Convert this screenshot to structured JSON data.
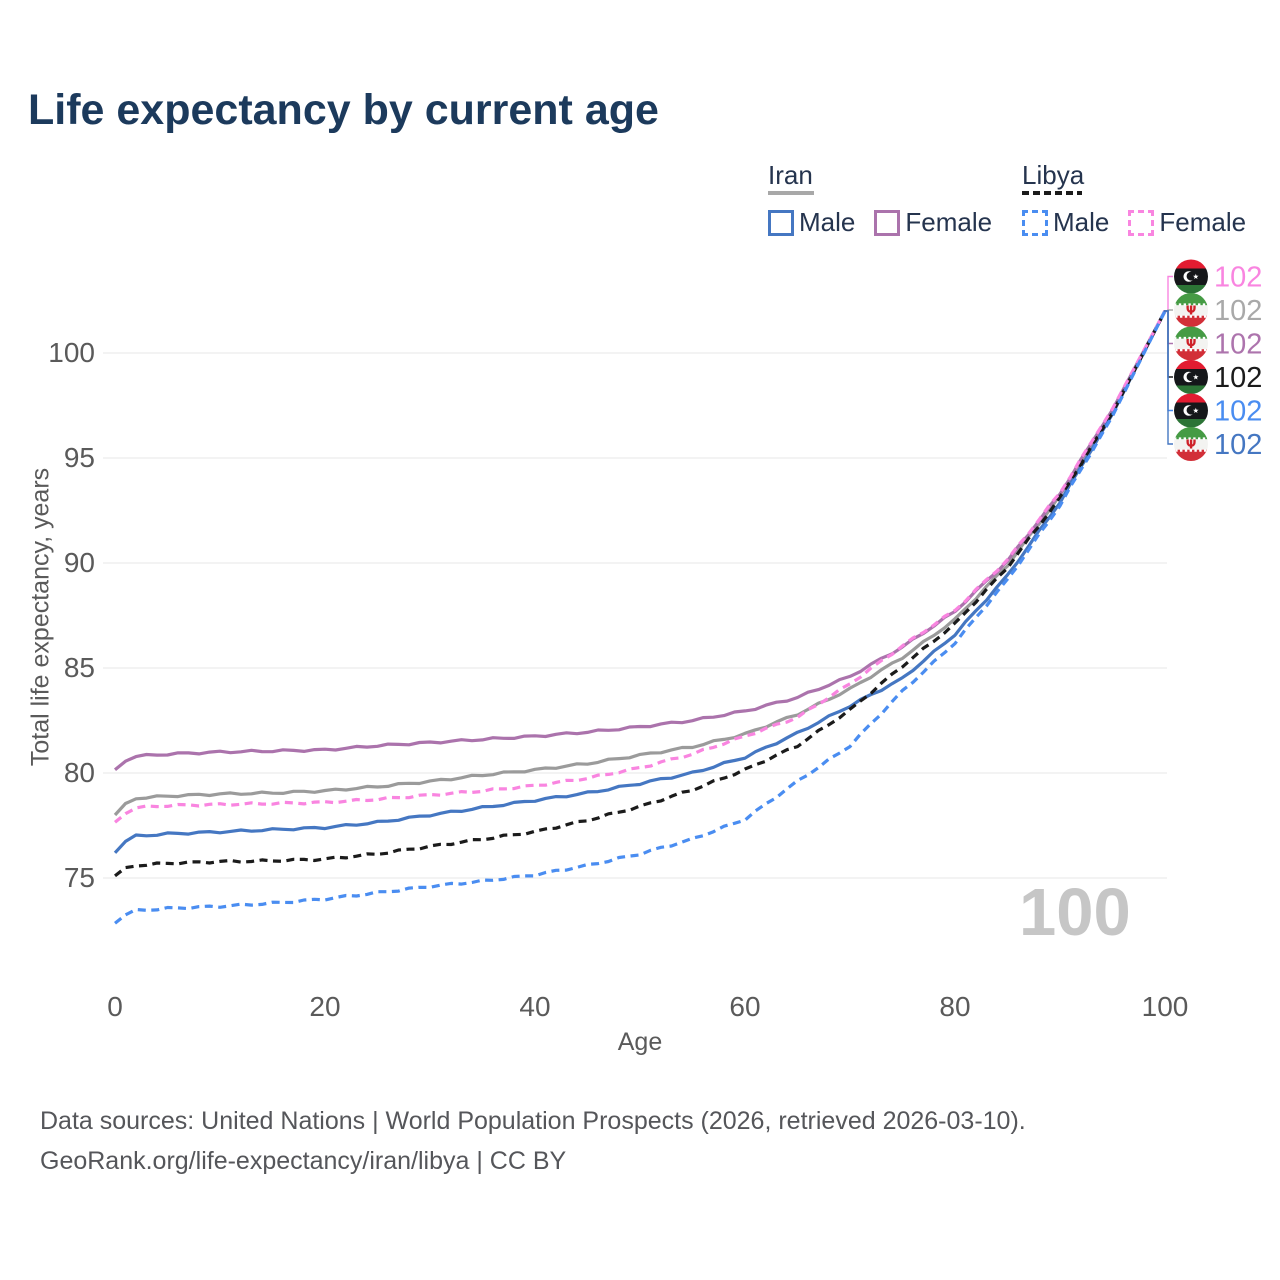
{
  "title": "Life expectancy by current age",
  "legend": {
    "groups": [
      {
        "country": "Iran",
        "line_style": "solid",
        "line_color": "#a8a8a8",
        "items": [
          {
            "label": "Male",
            "swatch_color": "#4577c2",
            "swatch_style": "solid"
          },
          {
            "label": "Female",
            "swatch_color": "#ab73ac",
            "swatch_style": "solid"
          }
        ]
      },
      {
        "country": "Libya",
        "line_style": "dashed",
        "line_color": "#1b1b1b",
        "items": [
          {
            "label": "Male",
            "swatch_color": "#4a8df1",
            "swatch_style": "dashed"
          },
          {
            "label": "Female",
            "swatch_color": "#f985e0",
            "swatch_style": "dashed"
          }
        ]
      }
    ]
  },
  "chart_data": {
    "type": "line",
    "title": "Life expectancy by current age",
    "xlabel": "Age",
    "ylabel": "Total life expectancy, years",
    "xlim": [
      0,
      100
    ],
    "ylim": [
      72,
      103
    ],
    "x_ticks": [
      0,
      20,
      40,
      60,
      80,
      100
    ],
    "y_ticks": [
      75,
      80,
      85,
      90,
      95,
      100
    ],
    "grid": "horizontal-only",
    "grid_color": "#ececec",
    "hover_age": "100",
    "series": [
      {
        "name": "Iran",
        "country": "iran",
        "sex": "total",
        "color": "#9b9b9b",
        "dashed": false,
        "points": [
          [
            0,
            78.0
          ],
          [
            1,
            78.5
          ],
          [
            2,
            78.8
          ],
          [
            5,
            78.9
          ],
          [
            10,
            79.0
          ],
          [
            15,
            79.05
          ],
          [
            20,
            79.15
          ],
          [
            25,
            79.35
          ],
          [
            30,
            79.6
          ],
          [
            35,
            79.9
          ],
          [
            40,
            80.15
          ],
          [
            45,
            80.45
          ],
          [
            50,
            80.85
          ],
          [
            55,
            81.25
          ],
          [
            60,
            81.85
          ],
          [
            65,
            82.8
          ],
          [
            70,
            84.0
          ],
          [
            75,
            85.5
          ],
          [
            80,
            87.3
          ],
          [
            85,
            89.9
          ],
          [
            90,
            93.2
          ],
          [
            95,
            97.2
          ],
          [
            100,
            102
          ]
        ]
      },
      {
        "name": "Iran Female",
        "country": "iran",
        "sex": "female",
        "color": "#ab73ac",
        "dashed": false,
        "points": [
          [
            0,
            80.15
          ],
          [
            1,
            80.6
          ],
          [
            2,
            80.8
          ],
          [
            5,
            80.9
          ],
          [
            10,
            81.0
          ],
          [
            15,
            81.05
          ],
          [
            20,
            81.1
          ],
          [
            25,
            81.3
          ],
          [
            30,
            81.45
          ],
          [
            35,
            81.6
          ],
          [
            40,
            81.75
          ],
          [
            45,
            81.95
          ],
          [
            50,
            82.2
          ],
          [
            55,
            82.5
          ],
          [
            60,
            82.95
          ],
          [
            65,
            83.6
          ],
          [
            70,
            84.6
          ],
          [
            75,
            86.0
          ],
          [
            80,
            87.7
          ],
          [
            85,
            90.1
          ],
          [
            90,
            93.3
          ],
          [
            95,
            97.3
          ],
          [
            100,
            102
          ]
        ]
      },
      {
        "name": "Iran Male",
        "country": "iran",
        "sex": "male",
        "color": "#4577c2",
        "dashed": false,
        "points": [
          [
            0,
            76.2
          ],
          [
            1,
            76.75
          ],
          [
            2,
            77.0
          ],
          [
            5,
            77.1
          ],
          [
            10,
            77.2
          ],
          [
            15,
            77.3
          ],
          [
            20,
            77.4
          ],
          [
            25,
            77.65
          ],
          [
            30,
            78.0
          ],
          [
            35,
            78.35
          ],
          [
            40,
            78.7
          ],
          [
            45,
            79.05
          ],
          [
            50,
            79.5
          ],
          [
            55,
            80.0
          ],
          [
            60,
            80.75
          ],
          [
            65,
            81.9
          ],
          [
            70,
            83.2
          ],
          [
            75,
            84.5
          ],
          [
            80,
            86.6
          ],
          [
            85,
            89.4
          ],
          [
            90,
            92.9
          ],
          [
            95,
            97.1
          ],
          [
            100,
            102
          ]
        ]
      },
      {
        "name": "Libya",
        "country": "libya",
        "sex": "total",
        "color": "#1b1b1b",
        "dashed": true,
        "points": [
          [
            0,
            75.1
          ],
          [
            1,
            75.45
          ],
          [
            2,
            75.6
          ],
          [
            5,
            75.7
          ],
          [
            10,
            75.78
          ],
          [
            15,
            75.82
          ],
          [
            20,
            75.9
          ],
          [
            25,
            76.15
          ],
          [
            30,
            76.5
          ],
          [
            35,
            76.85
          ],
          [
            40,
            77.2
          ],
          [
            45,
            77.75
          ],
          [
            50,
            78.4
          ],
          [
            55,
            79.2
          ],
          [
            60,
            80.15
          ],
          [
            65,
            81.3
          ],
          [
            70,
            83.0
          ],
          [
            75,
            85.1
          ],
          [
            80,
            87.1
          ],
          [
            85,
            89.8
          ],
          [
            90,
            93.1
          ],
          [
            95,
            97.15
          ],
          [
            100,
            102
          ]
        ]
      },
      {
        "name": "Libya Female",
        "country": "libya",
        "sex": "female",
        "color": "#f985e0",
        "dashed": true,
        "points": [
          [
            0,
            77.65
          ],
          [
            1,
            78.1
          ],
          [
            2,
            78.35
          ],
          [
            5,
            78.45
          ],
          [
            10,
            78.5
          ],
          [
            15,
            78.55
          ],
          [
            20,
            78.6
          ],
          [
            25,
            78.75
          ],
          [
            30,
            78.95
          ],
          [
            35,
            79.15
          ],
          [
            40,
            79.4
          ],
          [
            45,
            79.75
          ],
          [
            50,
            80.25
          ],
          [
            55,
            80.9
          ],
          [
            60,
            81.75
          ],
          [
            65,
            82.65
          ],
          [
            70,
            84.25
          ],
          [
            75,
            86.05
          ],
          [
            80,
            87.75
          ],
          [
            85,
            90.15
          ],
          [
            90,
            93.35
          ],
          [
            95,
            97.35
          ],
          [
            100,
            102
          ]
        ]
      },
      {
        "name": "Libya Male",
        "country": "libya",
        "sex": "male",
        "color": "#4a8df1",
        "dashed": true,
        "points": [
          [
            0,
            72.85
          ],
          [
            1,
            73.25
          ],
          [
            2,
            73.45
          ],
          [
            5,
            73.55
          ],
          [
            10,
            73.65
          ],
          [
            15,
            73.8
          ],
          [
            20,
            74.0
          ],
          [
            25,
            74.3
          ],
          [
            30,
            74.6
          ],
          [
            35,
            74.85
          ],
          [
            40,
            75.15
          ],
          [
            45,
            75.6
          ],
          [
            50,
            76.15
          ],
          [
            55,
            76.85
          ],
          [
            60,
            77.8
          ],
          [
            65,
            79.6
          ],
          [
            70,
            81.3
          ],
          [
            75,
            83.9
          ],
          [
            80,
            86.2
          ],
          [
            85,
            89.2
          ],
          [
            90,
            92.75
          ],
          [
            95,
            97.0
          ],
          [
            100,
            102
          ]
        ]
      }
    ],
    "end_labels": [
      {
        "series": "Libya Female",
        "flag": "libya",
        "value": "102",
        "color": "#f985e0"
      },
      {
        "series": "Iran",
        "flag": "iran",
        "value": "102",
        "color": "#a9a9a9"
      },
      {
        "series": "Iran Female",
        "flag": "iran",
        "value": "102",
        "color": "#ad74ad"
      },
      {
        "series": "Libya",
        "flag": "libya",
        "value": "102",
        "color": "#1b1b1b"
      },
      {
        "series": "Libya Male",
        "flag": "libya",
        "value": "102",
        "color": "#4a8df1"
      },
      {
        "series": "Iran Male",
        "flag": "iran",
        "value": "102",
        "color": "#4577c2"
      }
    ]
  },
  "footer": {
    "line1": "Data sources: United Nations | World Population Prospects (2026, retrieved 2026-03-10).",
    "line2": "GeoRank.org/life-expectancy/iran/libya | CC BY"
  }
}
